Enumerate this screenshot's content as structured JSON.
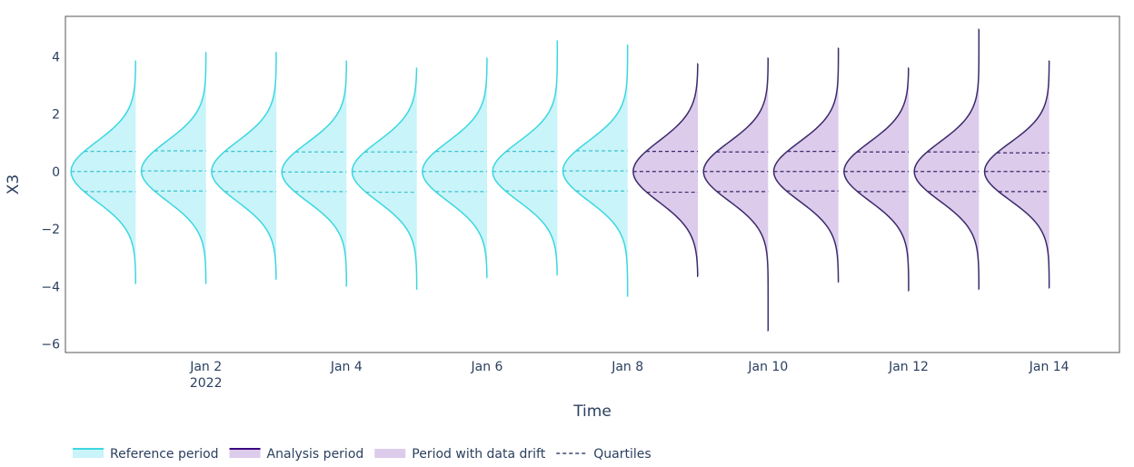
{
  "chart_data": {
    "type": "violin",
    "xlabel": "Time",
    "ylabel": "X3",
    "ylim": [
      -6.3,
      5.4
    ],
    "xlim": [
      "2021-12-31",
      "2022-01-15"
    ],
    "x_ticks": [
      {
        "date": "2022-01-02",
        "label": "Jan 2",
        "sublabel": "2022"
      },
      {
        "date": "2022-01-04",
        "label": "Jan 4",
        "sublabel": ""
      },
      {
        "date": "2022-01-06",
        "label": "Jan 6",
        "sublabel": ""
      },
      {
        "date": "2022-01-08",
        "label": "Jan 8",
        "sublabel": ""
      },
      {
        "date": "2022-01-10",
        "label": "Jan 10",
        "sublabel": ""
      },
      {
        "date": "2022-01-12",
        "label": "Jan 12",
        "sublabel": ""
      },
      {
        "date": "2022-01-14",
        "label": "Jan 14",
        "sublabel": ""
      }
    ],
    "y_ticks": [
      {
        "value": 4,
        "label": "4"
      },
      {
        "value": 2,
        "label": "2"
      },
      {
        "value": 0,
        "label": "0"
      },
      {
        "value": -2,
        "label": "−2"
      },
      {
        "value": -4,
        "label": "−4"
      },
      {
        "value": -6,
        "label": "−6"
      }
    ],
    "grid": false,
    "legend_position": "bottom-left",
    "legend": [
      {
        "name": "Reference period",
        "type": "line-fill",
        "color": "#3bd7e0",
        "fill": "#c9f4f9"
      },
      {
        "name": "Analysis period",
        "type": "line-fill",
        "color": "#3b0280",
        "fill": "#dccbeb"
      },
      {
        "name": "Period with data drift",
        "type": "fill",
        "fill": "#dccbeb"
      },
      {
        "name": "Quartiles",
        "type": "dash",
        "color": "#3b4a73"
      }
    ],
    "periods": {
      "reference": {
        "line": "#3bd7e0",
        "fill": "#c9f4f9",
        "quartile": "#3bc4d0"
      },
      "analysis": {
        "line": "#3b2a6b",
        "fill": "#dccbeb",
        "quartile": "#3b2a6b"
      }
    },
    "series": [
      {
        "date": "2022-01-01",
        "period": "reference",
        "max": 3.85,
        "min": -3.9,
        "q1": -0.7,
        "median": 0.0,
        "q3": 0.7
      },
      {
        "date": "2022-01-02",
        "period": "reference",
        "max": 4.15,
        "min": -3.9,
        "q1": -0.68,
        "median": 0.02,
        "q3": 0.72
      },
      {
        "date": "2022-01-03",
        "period": "reference",
        "max": 4.15,
        "min": -3.75,
        "q1": -0.7,
        "median": 0.0,
        "q3": 0.7
      },
      {
        "date": "2022-01-04",
        "period": "reference",
        "max": 3.85,
        "min": -4.0,
        "q1": -0.7,
        "median": -0.02,
        "q3": 0.68
      },
      {
        "date": "2022-01-05",
        "period": "reference",
        "max": 3.6,
        "min": -4.1,
        "q1": -0.72,
        "median": 0.0,
        "q3": 0.68
      },
      {
        "date": "2022-01-06",
        "period": "reference",
        "max": 3.95,
        "min": -3.7,
        "q1": -0.7,
        "median": 0.0,
        "q3": 0.7
      },
      {
        "date": "2022-01-07",
        "period": "reference",
        "max": 4.55,
        "min": -3.6,
        "q1": -0.68,
        "median": 0.0,
        "q3": 0.7
      },
      {
        "date": "2022-01-08",
        "period": "reference",
        "max": 4.4,
        "min": -4.35,
        "q1": -0.68,
        "median": 0.02,
        "q3": 0.72
      },
      {
        "date": "2022-01-09",
        "period": "analysis",
        "max": 3.75,
        "min": -3.65,
        "q1": -0.72,
        "median": 0.0,
        "q3": 0.7
      },
      {
        "date": "2022-01-10",
        "period": "analysis",
        "max": 3.95,
        "min": -5.55,
        "q1": -0.7,
        "median": 0.0,
        "q3": 0.68
      },
      {
        "date": "2022-01-11",
        "period": "analysis",
        "max": 4.3,
        "min": -3.85,
        "q1": -0.68,
        "median": 0.0,
        "q3": 0.7
      },
      {
        "date": "2022-01-12",
        "period": "analysis",
        "max": 3.6,
        "min": -4.15,
        "q1": -0.7,
        "median": 0.0,
        "q3": 0.68
      },
      {
        "date": "2022-01-13",
        "period": "analysis",
        "max": 4.95,
        "min": -4.1,
        "q1": -0.7,
        "median": 0.0,
        "q3": 0.68
      },
      {
        "date": "2022-01-14",
        "period": "analysis",
        "max": 3.85,
        "min": -4.05,
        "q1": -0.7,
        "median": 0.0,
        "q3": 0.65
      }
    ]
  }
}
